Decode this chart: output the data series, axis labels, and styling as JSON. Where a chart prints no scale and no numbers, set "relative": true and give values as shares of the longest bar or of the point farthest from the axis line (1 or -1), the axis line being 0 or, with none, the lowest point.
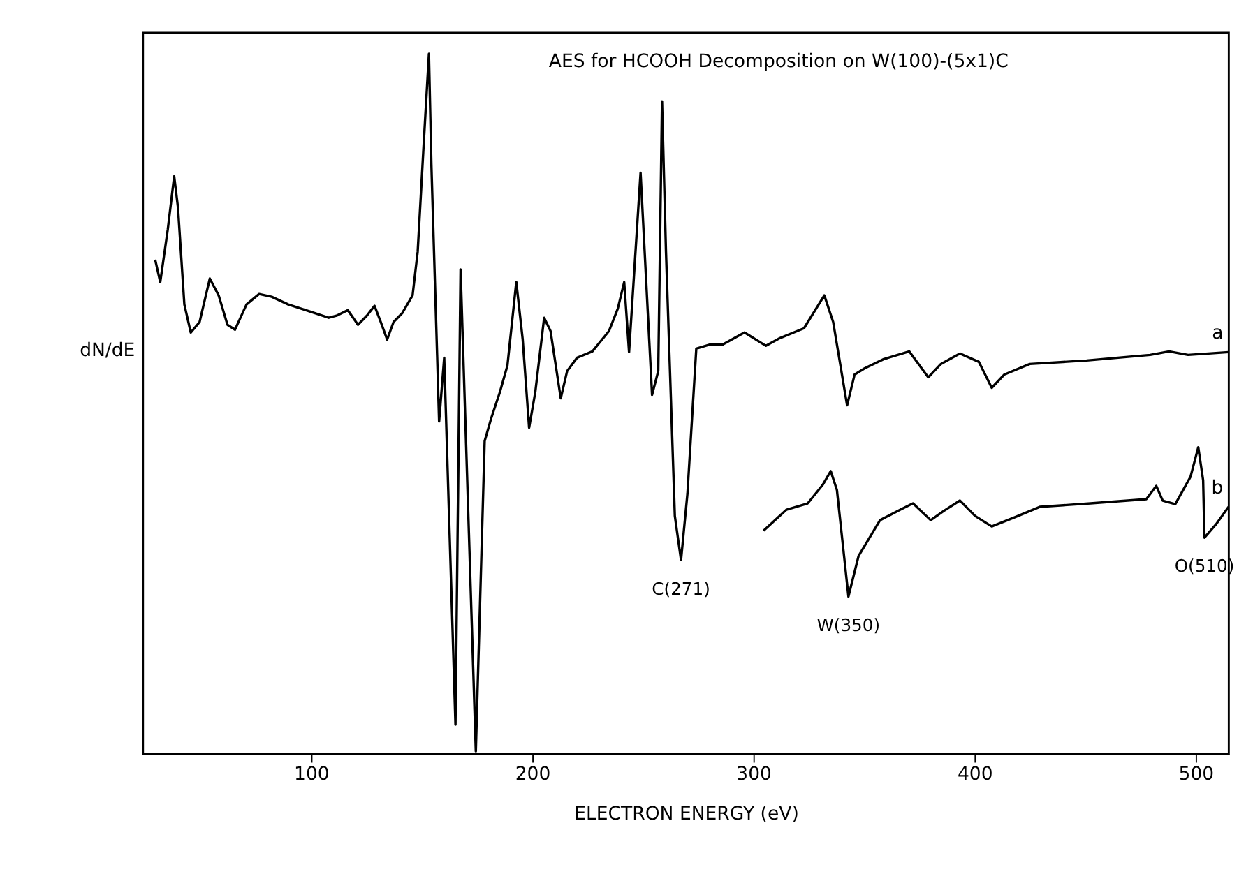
{
  "chart_data": {
    "type": "line",
    "title": "AES for HCOOH Decomposition on W(100)-(5x1)C",
    "xlabel": "ELECTRON ENERGY      (eV)",
    "ylabel": "dN/dE",
    "relative": true,
    "xlim": [
      24,
      515
    ],
    "xticks": [
      100,
      200,
      300,
      400,
      500
    ],
    "grid": false,
    "legend": false,
    "marker": "none",
    "line_style": "solid",
    "series": [
      {
        "name": "a",
        "color": "#000000",
        "x": [
          29.5,
          31.8,
          35.2,
          38.1,
          39.8,
          42.7,
          45.6,
          49.6,
          54.2,
          58.2,
          62.2,
          65.6,
          70.8,
          76.5,
          82.2,
          89.7,
          99.4,
          108.0,
          111.5,
          116.6,
          121.2,
          125.2,
          128.7,
          131.5,
          134.4,
          137.3,
          141.3,
          145.9,
          148.2,
          151.0,
          153.3,
          154.4,
          157.9,
          160.2,
          165.3,
          167.6,
          174.5,
          178.5,
          181.4,
          185.4,
          188.8,
          192.8,
          195.7,
          198.6,
          201.4,
          205.4,
          208.3,
          212.9,
          215.8,
          220.3,
          227.2,
          234.7,
          238.7,
          241.6,
          243.8,
          249.0,
          254.2,
          257.0,
          258.7,
          260.5,
          264.5,
          267.3,
          270.2,
          274.2,
          280.5,
          286.3,
          296.0,
          305.7,
          312.0,
          322.9,
          332.1,
          336.1,
          342.4,
          345.8,
          350.4,
          359.0,
          370.5,
          379.1,
          384.8,
          393.4,
          402.0,
          407.8,
          413.5,
          425.0,
          450.7,
          479.4,
          488.0,
          496.6,
          514.9
        ],
        "values": [
          0.706,
          0.674,
          0.749,
          0.825,
          0.781,
          0.642,
          0.602,
          0.617,
          0.679,
          0.655,
          0.613,
          0.606,
          0.642,
          0.657,
          0.653,
          0.642,
          0.632,
          0.623,
          0.626,
          0.634,
          0.613,
          0.626,
          0.64,
          0.617,
          0.592,
          0.617,
          0.63,
          0.655,
          0.717,
          0.875,
          1.0,
          0.843,
          0.475,
          0.566,
          0.042,
          0.692,
          0.004,
          0.447,
          0.479,
          0.517,
          0.555,
          0.674,
          0.592,
          0.466,
          0.517,
          0.623,
          0.604,
          0.508,
          0.547,
          0.566,
          0.575,
          0.604,
          0.636,
          0.674,
          0.574,
          0.83,
          0.513,
          0.547,
          0.932,
          0.717,
          0.34,
          0.277,
          0.372,
          0.579,
          0.585,
          0.585,
          0.602,
          0.583,
          0.594,
          0.608,
          0.655,
          0.617,
          0.498,
          0.542,
          0.551,
          0.564,
          0.575,
          0.538,
          0.557,
          0.572,
          0.56,
          0.523,
          0.542,
          0.557,
          0.562,
          0.57,
          0.575,
          0.57,
          0.574
        ]
      },
      {
        "name": "b",
        "color": "#000000",
        "x": [
          304.6,
          315.0,
          324.6,
          331.5,
          335.0,
          337.8,
          343.0,
          347.6,
          357.3,
          366.5,
          372.2,
          380.2,
          386.0,
          393.4,
          400.3,
          407.8,
          418.1,
          429.5,
          452.5,
          477.7,
          482.2,
          485.1,
          490.8,
          497.7,
          501.2,
          503.4,
          504.0,
          509.2,
          514.9
        ],
        "values": [
          0.319,
          0.349,
          0.358,
          0.385,
          0.404,
          0.377,
          0.225,
          0.283,
          0.334,
          0.349,
          0.358,
          0.334,
          0.347,
          0.362,
          0.34,
          0.325,
          0.338,
          0.353,
          0.358,
          0.364,
          0.383,
          0.362,
          0.357,
          0.396,
          0.438,
          0.391,
          0.309,
          0.328,
          0.353
        ]
      }
    ],
    "annotations": [
      {
        "text": "C(271)",
        "x": 267.3,
        "y": 0.277
      },
      {
        "text": "W(350)",
        "x": 343.0,
        "y": 0.225
      },
      {
        "text": "O(510)",
        "x": 504.0,
        "y": 0.309
      }
    ]
  }
}
